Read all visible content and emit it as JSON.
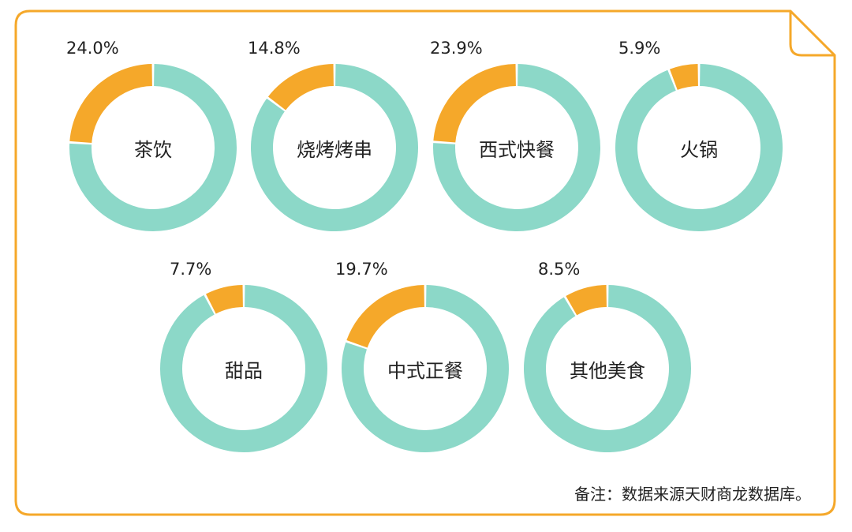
{
  "chart_data": {
    "type": "pie",
    "variant": "donut",
    "colors": {
      "highlight": "#F5A82A",
      "remainder": "#8CD8C8",
      "border": "#F5A82A"
    },
    "series": [
      {
        "category": "茶饮",
        "value": 24.0,
        "label": "24.0%"
      },
      {
        "category": "烧烤烤串",
        "value": 14.8,
        "label": "14.8%"
      },
      {
        "category": "西式快餐",
        "value": 23.9,
        "label": "23.9%"
      },
      {
        "category": "火锅",
        "value": 5.9,
        "label": "5.9%"
      },
      {
        "category": "甜品",
        "value": 7.7,
        "label": "7.7%"
      },
      {
        "category": "中式正餐",
        "value": 19.7,
        "label": "19.7%"
      },
      {
        "category": "其他美食",
        "value": 8.5,
        "label": "8.5%"
      }
    ]
  },
  "note": "备注：数据来源天财商龙数据库。"
}
